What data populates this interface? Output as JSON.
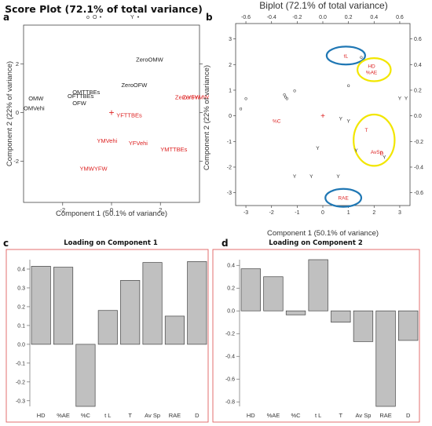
{
  "colors": {
    "black": "#222222",
    "red": "#dd2222",
    "bar_fill": "#c0c0c0",
    "panel_border": "#e06060",
    "blue_ellipse": "#1f77b4",
    "yellow_ellipse": "#f2e600"
  },
  "chart_data": [
    {
      "panel": "a",
      "type": "scatter",
      "title": "Score Plot (72.1% of total variance)",
      "xlabel": "Component 1 (50.1% of variance)",
      "ylabel": "Component 2 (22% of variance)",
      "xlim": [
        -3.6,
        3.6
      ],
      "ylim": [
        -3.7,
        3.6
      ],
      "xticks": [
        -2,
        0,
        2
      ],
      "yticks": [
        -2,
        0,
        2
      ],
      "legend": {
        "position": "top",
        "items": [
          {
            "marker": "o",
            "label": "O"
          },
          {
            "marker": "•",
            "label": ""
          },
          {
            "marker": "",
            "label": "Y"
          },
          {
            "marker": "•",
            "label": ""
          }
        ]
      },
      "center_marker": {
        "x": 0,
        "y": 0,
        "symbol": "+"
      },
      "points": [
        {
          "label": "ZeroOMW",
          "x": 1.0,
          "y": 2.2,
          "group": "O"
        },
        {
          "label": "ZeroOFW",
          "x": 0.4,
          "y": 1.15,
          "group": "O"
        },
        {
          "label": "OMTTBEs",
          "x": -1.6,
          "y": 0.85,
          "group": "O"
        },
        {
          "label": "OFTTBEs",
          "x": -1.8,
          "y": 0.7,
          "group": "O"
        },
        {
          "label": "OMW",
          "x": -3.4,
          "y": 0.6,
          "group": "O"
        },
        {
          "label": "OFW",
          "x": -1.6,
          "y": 0.4,
          "group": "O"
        },
        {
          "label": "OMVehi",
          "x": -3.6,
          "y": 0.2,
          "group": "O"
        },
        {
          "label": "ZeroYFW",
          "x": 2.6,
          "y": 0.65,
          "group": "Y"
        },
        {
          "label": "ZeroYMW",
          "x": 2.9,
          "y": 0.65,
          "group": "Y"
        },
        {
          "label": "YFTTBEs",
          "x": 0.2,
          "y": -0.1,
          "group": "Y"
        },
        {
          "label": "YMVehi",
          "x": -0.6,
          "y": -1.15,
          "group": "Y"
        },
        {
          "label": "YFVehi",
          "x": 0.7,
          "y": -1.25,
          "group": "Y"
        },
        {
          "label": "YMTTBEs",
          "x": 2.0,
          "y": -1.5,
          "group": "Y"
        },
        {
          "label": "YMWYFW",
          "x": -1.3,
          "y": -2.3,
          "group": "Y"
        }
      ]
    },
    {
      "panel": "b",
      "type": "scatter",
      "title": "Biplot (72.1% of total variance)",
      "xlabel": "Component 1 (50.1% of variance)",
      "ylabel": "Component 2 (22% of variance)",
      "xlim": [
        -3.4,
        3.4
      ],
      "ylim": [
        -3.5,
        3.6
      ],
      "xticks": [
        -3,
        -2,
        -1,
        0,
        1,
        2,
        3
      ],
      "yticks": [
        -3,
        -2,
        -1,
        0,
        1,
        2,
        3
      ],
      "top_axis_ticks": [
        "-0.6",
        "-0.4",
        "-0.2",
        "0.0",
        "0.2",
        "0.4",
        "0.6"
      ],
      "right_axis_ticks": [
        "0.6",
        "0.4",
        "0.2",
        "0.0",
        "-0.2",
        "-0.4",
        "-0.6"
      ],
      "center_marker": {
        "x": 0,
        "y": 0,
        "symbol": "+"
      },
      "score_points": [
        {
          "marker": "o",
          "x": -3.2,
          "y": 0.3
        },
        {
          "marker": "o",
          "x": -3.0,
          "y": 0.7
        },
        {
          "marker": "o",
          "x": -1.5,
          "y": 0.85
        },
        {
          "marker": "o",
          "x": -1.45,
          "y": 0.75
        },
        {
          "marker": "o",
          "x": -1.4,
          "y": 0.7
        },
        {
          "marker": "o",
          "x": -1.1,
          "y": 1.0
        },
        {
          "marker": "o",
          "x": 1.0,
          "y": 1.2
        },
        {
          "marker": "o",
          "x": 1.5,
          "y": 2.3
        },
        {
          "marker": "Y",
          "x": 3.0,
          "y": 0.7
        },
        {
          "marker": "Y",
          "x": 3.25,
          "y": 0.7
        },
        {
          "marker": "Y",
          "x": 0.7,
          "y": -0.1
        },
        {
          "marker": "Y",
          "x": 1.0,
          "y": -0.2
        },
        {
          "marker": "Y",
          "x": -0.2,
          "y": -1.25
        },
        {
          "marker": "Y",
          "x": 1.3,
          "y": -1.35
        },
        {
          "marker": "Y",
          "x": 2.4,
          "y": -1.6
        },
        {
          "marker": "Y",
          "x": -1.1,
          "y": -2.35
        },
        {
          "marker": "Y",
          "x": -0.45,
          "y": -2.35
        },
        {
          "marker": "Y",
          "x": 0.6,
          "y": -2.35
        }
      ],
      "loadings": [
        {
          "label": "tL",
          "x": 0.9,
          "y": 2.35
        },
        {
          "label": "HD",
          "x": 1.9,
          "y": 1.95
        },
        {
          "label": "%AE",
          "x": 1.9,
          "y": 1.7
        },
        {
          "label": "%C",
          "x": -1.8,
          "y": -0.2
        },
        {
          "label": "T",
          "x": 1.7,
          "y": -0.55
        },
        {
          "label": "AvSp",
          "x": 2.1,
          "y": -1.4
        },
        {
          "label": "D",
          "x": 2.3,
          "y": -1.45
        },
        {
          "label": "RAE",
          "x": 0.8,
          "y": -3.2
        }
      ],
      "highlights": [
        {
          "color": "blue",
          "x": 0.9,
          "y": 2.35,
          "rx": 0.75,
          "ry": 0.35
        },
        {
          "color": "yellow",
          "x": 2.0,
          "y": 1.8,
          "rx": 0.65,
          "ry": 0.45
        },
        {
          "color": "yellow",
          "x": 2.0,
          "y": -0.95,
          "rx": 0.8,
          "ry": 1.0
        },
        {
          "color": "blue",
          "x": 0.8,
          "y": -3.2,
          "rx": 0.7,
          "ry": 0.35
        }
      ]
    },
    {
      "panel": "c",
      "type": "bar",
      "title": "Loading on Component 1",
      "categories": [
        "HD",
        "%AE",
        "%C",
        "t L",
        "T",
        "Av Sp",
        "RAE",
        "D"
      ],
      "values": [
        0.415,
        0.41,
        -0.33,
        0.18,
        0.34,
        0.435,
        0.15,
        0.44
      ],
      "ylim": [
        -0.33,
        0.45
      ],
      "yticks": [
        "0.4",
        "0.3",
        "0.2",
        "0.1",
        "0.0",
        "-0.1",
        "-0.2",
        "-0.3"
      ]
    },
    {
      "panel": "d",
      "type": "bar",
      "title": "Loading on Component 2",
      "categories": [
        "HD",
        "%AE",
        "%C",
        "t L",
        "T",
        "Av Sp",
        "RAE",
        "D"
      ],
      "values": [
        0.37,
        0.3,
        -0.035,
        0.45,
        -0.1,
        -0.27,
        -0.84,
        -0.26
      ],
      "ylim": [
        -0.84,
        0.45
      ],
      "yticks": [
        "0.4",
        "0.2",
        "0.0",
        "-0.2",
        "-0.4",
        "-0.6",
        "-0.8"
      ]
    }
  ]
}
